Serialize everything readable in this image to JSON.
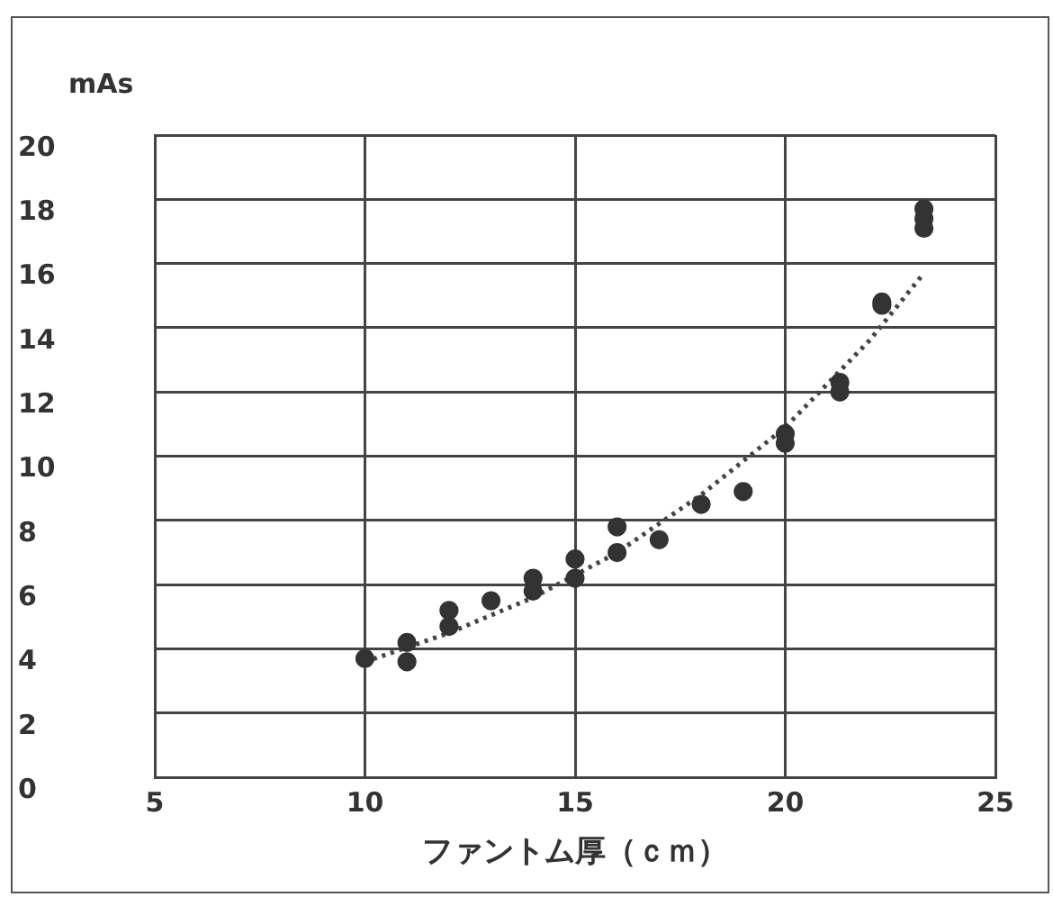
{
  "chart_data": {
    "type": "scatter",
    "xlabel": "ファントム厚（ｃｍ）",
    "ylabel": "mAs",
    "xlim": [
      5,
      25
    ],
    "xticks": [
      5,
      10,
      15,
      20,
      25
    ],
    "ylim": [
      0,
      20
    ],
    "yticks": [
      0,
      2,
      4,
      6,
      8,
      10,
      12,
      14,
      16,
      18,
      20
    ],
    "grid": true,
    "legend": false,
    "marker": "circle",
    "series": [
      {
        "color": "#333333",
        "x": [
          10,
          11,
          11,
          12,
          12,
          13,
          14,
          14,
          15,
          15,
          16,
          16,
          17,
          18,
          19,
          20,
          20,
          21.3,
          21.3,
          22.3,
          22.3,
          23.3,
          23.3,
          23.3
        ],
        "values": [
          3.7,
          4.2,
          3.6,
          5.2,
          4.7,
          5.5,
          6.2,
          5.8,
          6.8,
          6.2,
          7.8,
          7.0,
          7.4,
          8.5,
          8.9,
          10.7,
          10.4,
          12.3,
          12.0,
          14.8,
          14.7,
          17.7,
          17.4,
          17.1
        ]
      },
      {
        "type": "line",
        "color": "#444444",
        "line_style": "dotted",
        "marker": "none",
        "x": [
          10,
          12,
          14,
          16,
          18,
          20,
          22,
          23.3
        ],
        "values": [
          3.6,
          4.5,
          5.6,
          7.0,
          8.8,
          10.9,
          13.6,
          15.7
        ]
      }
    ]
  }
}
